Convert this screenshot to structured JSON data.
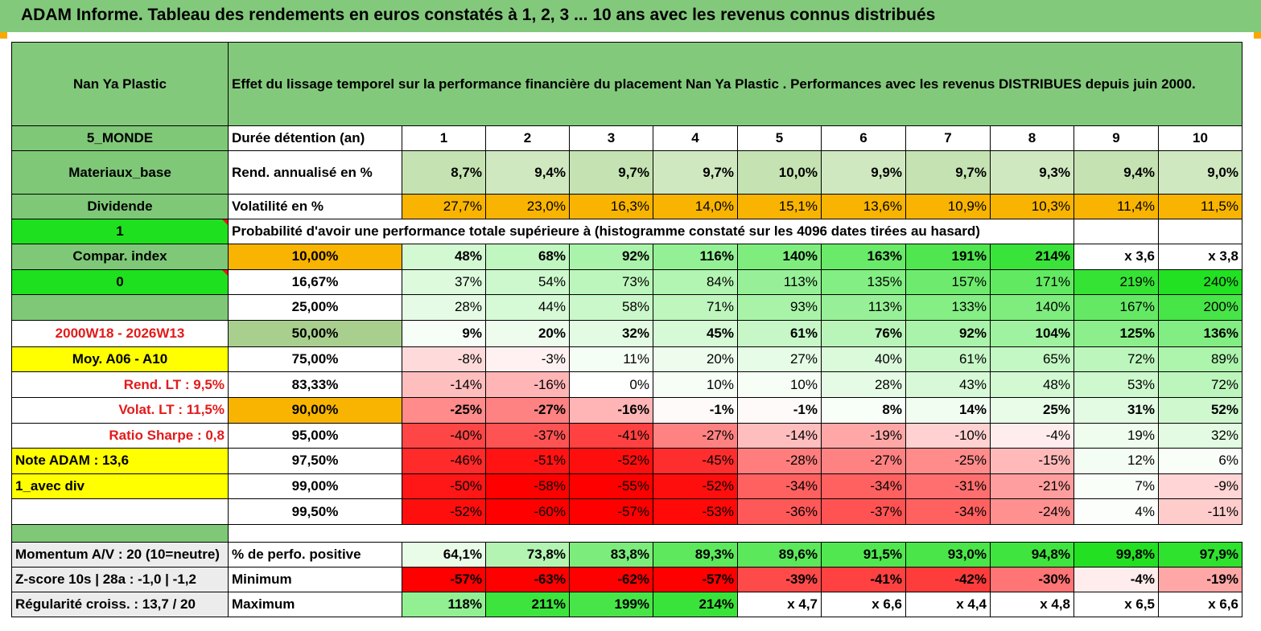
{
  "title": "ADAM Informe. Tableau des rendements en euros constatés à 1, 2, 3 ... 10 ans avec les revenus connus distribués",
  "colors": {
    "header_green": "#83c97c",
    "bright_green": "#1fe01f",
    "yellow": "#ffff00",
    "orange": "#f8b400",
    "red_text": "#e31a1a"
  },
  "header": {
    "name": "Nan Ya Plastic",
    "description": "Effet du lissage temporel sur la performance financière du placement Nan Ya Plastic . Performances avec les revenus DISTRIBUES depuis juin 2000."
  },
  "left": {
    "zone": "5_MONDE",
    "sector": "Materiaux_base",
    "div": "Dividende",
    "one": "1",
    "compar": "Compar. index",
    "zero": "0",
    "blank": "",
    "period": "2000W18 - 2026W13",
    "moy": "Moy. A06 - A10",
    "rend_lt": "Rend. LT :   9,5%",
    "volat_lt": "Volat. LT :   11,5%",
    "sharpe": "Ratio Sharpe :    0,8",
    "note": "Note ADAM : 13,6",
    "avec_div": "1_avec div"
  },
  "years_label": "Durée détention (an)",
  "years": [
    "1",
    "2",
    "3",
    "4",
    "5",
    "6",
    "7",
    "8",
    "9",
    "10"
  ],
  "rend_label": "Rend. annualisé en %",
  "rend": [
    "8,7%",
    "9,4%",
    "9,7%",
    "9,7%",
    "10,0%",
    "9,9%",
    "9,7%",
    "9,3%",
    "9,4%",
    "9,0%"
  ],
  "vol_label": "Volatilité en %",
  "vol": [
    "27,7%",
    "23,0%",
    "16,3%",
    "14,0%",
    "15,1%",
    "13,6%",
    "10,9%",
    "10,3%",
    "11,4%",
    "11,5%"
  ],
  "prob_title": "Probabilité d'avoir une performance totale supérieure à (histogramme constaté sur les 4096 dates tirées au hasard)",
  "quantiles": [
    {
      "label": "10,00%",
      "values": [
        "48%",
        "68%",
        "92%",
        "116%",
        "140%",
        "163%",
        "191%",
        "214%",
        "x 3,6",
        "x 3,8"
      ]
    },
    {
      "label": "16,67%",
      "values": [
        "37%",
        "54%",
        "73%",
        "84%",
        "113%",
        "135%",
        "157%",
        "171%",
        "219%",
        "240%"
      ]
    },
    {
      "label": "25,00%",
      "values": [
        "28%",
        "44%",
        "58%",
        "71%",
        "93%",
        "113%",
        "133%",
        "140%",
        "167%",
        "200%"
      ]
    },
    {
      "label": "50,00%",
      "values": [
        "9%",
        "20%",
        "32%",
        "45%",
        "61%",
        "76%",
        "92%",
        "104%",
        "125%",
        "136%"
      ]
    },
    {
      "label": "75,00%",
      "values": [
        "-8%",
        "-3%",
        "11%",
        "20%",
        "27%",
        "40%",
        "61%",
        "65%",
        "72%",
        "89%"
      ]
    },
    {
      "label": "83,33%",
      "values": [
        "-14%",
        "-16%",
        "0%",
        "10%",
        "10%",
        "28%",
        "43%",
        "48%",
        "53%",
        "72%"
      ]
    },
    {
      "label": "90,00%",
      "values": [
        "-25%",
        "-27%",
        "-16%",
        "-1%",
        "-1%",
        "8%",
        "14%",
        "25%",
        "31%",
        "52%"
      ]
    },
    {
      "label": "95,00%",
      "values": [
        "-40%",
        "-37%",
        "-41%",
        "-27%",
        "-14%",
        "-19%",
        "-10%",
        "-4%",
        "19%",
        "32%"
      ]
    },
    {
      "label": "97,50%",
      "values": [
        "-46%",
        "-51%",
        "-52%",
        "-45%",
        "-28%",
        "-27%",
        "-25%",
        "-15%",
        "12%",
        "6%"
      ]
    },
    {
      "label": "99,00%",
      "values": [
        "-50%",
        "-58%",
        "-55%",
        "-52%",
        "-34%",
        "-34%",
        "-31%",
        "-21%",
        "7%",
        "-9%"
      ]
    },
    {
      "label": "99,50%",
      "values": [
        "-52%",
        "-60%",
        "-57%",
        "-53%",
        "-36%",
        "-37%",
        "-34%",
        "-24%",
        "4%",
        "-11%"
      ]
    }
  ],
  "bottom": [
    {
      "left": "Momentum A/V : 20 (10=neutre)",
      "label": "% de perfo. positive",
      "values": [
        "64,1%",
        "73,8%",
        "83,8%",
        "89,3%",
        "89,6%",
        "91,5%",
        "93,0%",
        "94,8%",
        "99,8%",
        "97,9%"
      ]
    },
    {
      "left": "Z-score 10s | 28a : -1,0 | -1,2",
      "label": "Minimum",
      "values": [
        "-57%",
        "-63%",
        "-62%",
        "-57%",
        "-39%",
        "-41%",
        "-42%",
        "-30%",
        "-4%",
        "-19%"
      ]
    },
    {
      "left": "Régularité croiss. : 13,7 / 20",
      "label": "Maximum",
      "values": [
        "118%",
        "211%",
        "199%",
        "214%",
        "x 4,7",
        "x 6,6",
        "x 4,4",
        "x 4,8",
        "x 6,5",
        "x 6,6"
      ]
    }
  ]
}
